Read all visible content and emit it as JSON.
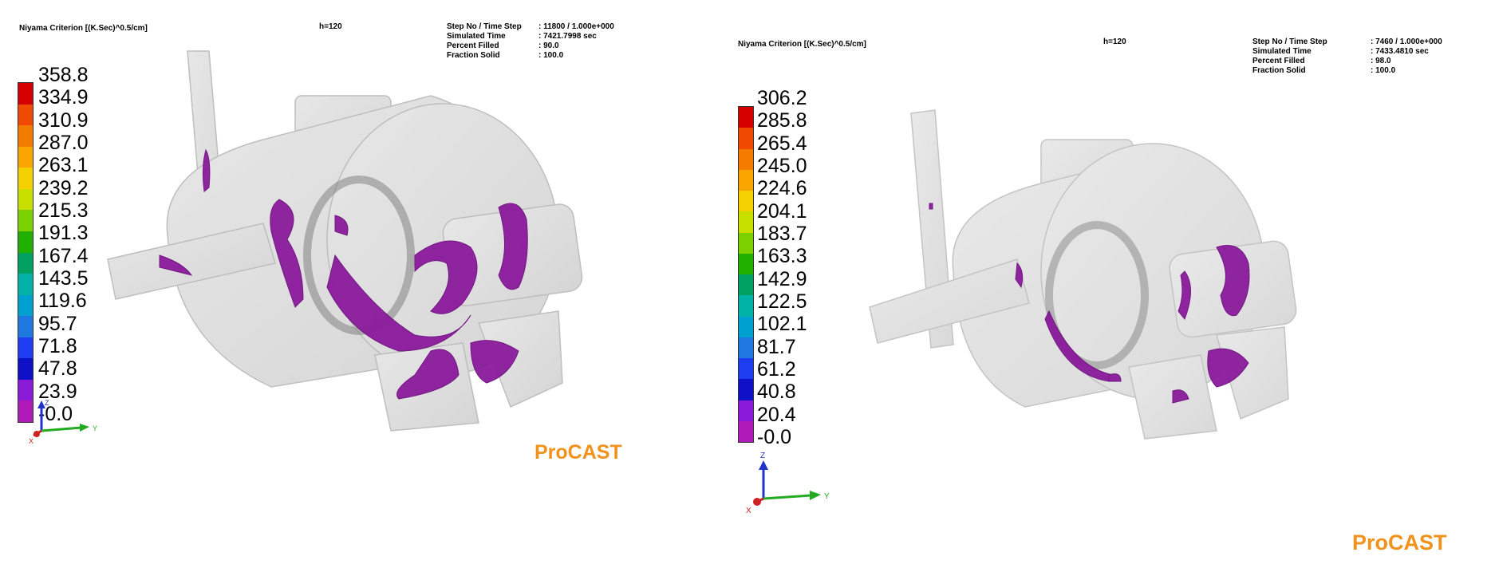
{
  "colors": {
    "background": "#ffffff",
    "brand": "#f0921c",
    "defect": "#8b1a9c",
    "casting_shell": "#c8c8c8",
    "axis_x": "#cc2222",
    "axis_y": "#22aa22",
    "axis_z": "#2233cc"
  },
  "palette": [
    "#d40000",
    "#f04a00",
    "#f57a00",
    "#f8a500",
    "#f5d000",
    "#c8e000",
    "#7cd000",
    "#22b000",
    "#00a060",
    "#00b3a6",
    "#00a0d0",
    "#1e78e0",
    "#1e3cf0",
    "#1010c8",
    "#8a1ad8",
    "#b01ab8"
  ],
  "panels": [
    {
      "title": "Niyama Criterion [(K.Sec)^0.5/cm]",
      "h_label": "h=120",
      "info": [
        {
          "key": "Step No / Time Step",
          "value": ": 11800  /  1.000e+000"
        },
        {
          "key": "Simulated Time",
          "value": ": 7421.7998  sec"
        },
        {
          "key": "Percent Filled",
          "value": ": 90.0"
        },
        {
          "key": "Fraction Solid",
          "value": ": 100.0"
        }
      ],
      "ticks": [
        "358.8",
        "334.9",
        "310.9",
        "287.0",
        "263.1",
        "239.2",
        "215.3",
        "191.3",
        "167.4",
        "143.5",
        "119.6",
        "95.7",
        "71.8",
        "47.8",
        "23.9",
        "-0.0"
      ],
      "axes": {
        "x": "X",
        "y": "Y",
        "z": "Z"
      },
      "brand": "ProCAST"
    },
    {
      "title": "Niyama Criterion [(K.Sec)^0.5/cm]",
      "h_label": "h=120",
      "info": [
        {
          "key": "Step No / Time Step",
          "value": ": 7460  /  1.000e+000"
        },
        {
          "key": "Simulated Time",
          "value": ": 7433.4810  sec"
        },
        {
          "key": "Percent Filled",
          "value": ": 98.0"
        },
        {
          "key": "Fraction Solid",
          "value": ": 100.0"
        }
      ],
      "ticks": [
        "306.2",
        "285.8",
        "265.4",
        "245.0",
        "224.6",
        "204.1",
        "183.7",
        "163.3",
        "142.9",
        "122.5",
        "102.1",
        "81.7",
        "61.2",
        "40.8",
        "20.4",
        "-0.0"
      ],
      "axes": {
        "x": "X",
        "y": "Y",
        "z": "Z"
      },
      "brand": "ProCAST"
    }
  ]
}
